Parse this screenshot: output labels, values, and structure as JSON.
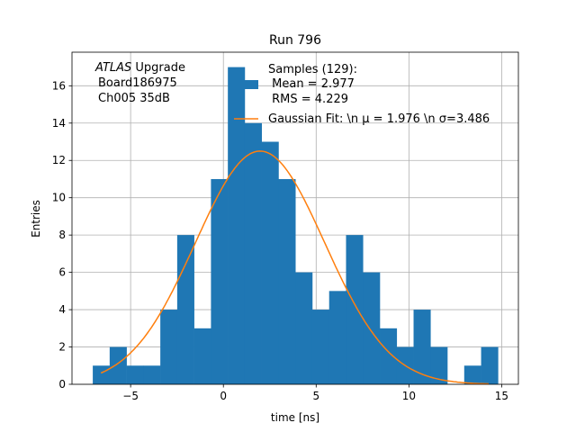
{
  "chart_data": {
    "type": "bar",
    "title": "Run 796",
    "xlabel": "time [ns]",
    "ylabel": "Entries",
    "xlim": [
      -8.16,
      15.9
    ],
    "ylim": [
      0,
      17.8
    ],
    "grid": true,
    "xticks": [
      -5,
      0,
      5,
      10,
      15
    ],
    "xtick_labels": [
      "−5",
      "0",
      "5",
      "10",
      "15"
    ],
    "yticks": [
      0,
      2,
      4,
      6,
      8,
      10,
      12,
      14,
      16
    ],
    "bin_start": -7.04,
    "bin_width": 0.91,
    "values": [
      1,
      2,
      1,
      1,
      4,
      8,
      3,
      11,
      17,
      14,
      13,
      11,
      6,
      4,
      5,
      8,
      6,
      3,
      2,
      4,
      2,
      0,
      1,
      2
    ],
    "bar_color": "#1f77b4",
    "fit": {
      "amplitude": 12.5,
      "mu": 1.976,
      "sigma": 3.486,
      "x_range": [
        -6.6,
        14.3
      ],
      "color": "#ff7f0e"
    },
    "annotation": {
      "italic": "ATLAS",
      "rest": " Upgrade",
      "line2": "Board186975",
      "line3": "Ch005 35dB"
    },
    "legend": {
      "placement": "top-center",
      "hist_lines": [
        "Samples (129):",
        " Mean = 2.977",
        " RMS = 4.229"
      ],
      "fit_label": "Gaussian Fit: \\n μ = 1.976 \\n σ=3.486"
    }
  }
}
